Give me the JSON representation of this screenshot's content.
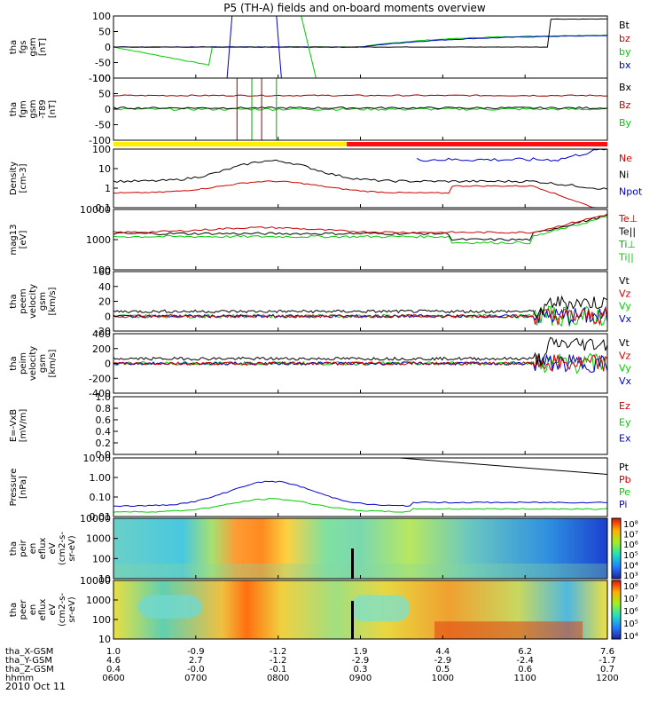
{
  "chart_data": {
    "type": "line",
    "title": "P5 (TH-A) fields and on-board moments overview",
    "date_label": "2010 Oct 11",
    "x_time_ticks": [
      "0600",
      "0700",
      "0800",
      "0900",
      "1000",
      "1100",
      "1200"
    ],
    "orbit_rows": [
      {
        "label": "tha_X-GSM",
        "values": [
          "1.0",
          "-0.9",
          "-1.2",
          "1.9",
          "4.4",
          "6.2",
          "7.6"
        ]
      },
      {
        "label": "tha_Y-GSM",
        "values": [
          "4.6",
          "2.7",
          "-1.2",
          "-2.9",
          "-2.9",
          "-2.4",
          "-1.7"
        ]
      },
      {
        "label": "tha_Z-GSM",
        "values": [
          "0.4",
          "-0.0",
          "-0.1",
          "0.3",
          "0.5",
          "0.6",
          "0.7"
        ]
      },
      {
        "label": "hhmm",
        "values": [
          "0600",
          "0700",
          "0800",
          "0900",
          "1000",
          "1100",
          "1200"
        ]
      }
    ],
    "panels": [
      {
        "id": "fgs",
        "ylabel": [
          "tha",
          "fgs",
          "gsm",
          "[nT]"
        ],
        "y_ticks": [
          "100",
          "50",
          "0",
          "-50",
          "-100"
        ],
        "legend": [
          {
            "name": "Bt",
            "color": "#000000"
          },
          {
            "name": "bz",
            "color": "#cc0000"
          },
          {
            "name": "by",
            "color": "#00cc00"
          },
          {
            "name": "bx",
            "color": "#0000cc"
          }
        ]
      },
      {
        "id": "fgm",
        "ylabel": [
          "tha",
          "fgm",
          "gsm",
          "-T89",
          "[nT]"
        ],
        "y_ticks": [
          "100",
          "50",
          "0",
          "-50",
          "-100"
        ],
        "legend": [
          {
            "name": "Bx",
            "color": "#000000"
          },
          {
            "name": "Bz",
            "color": "#cc0000"
          },
          {
            "name": "By",
            "color": "#00cc00"
          }
        ]
      },
      {
        "id": "density",
        "ylabel": [
          "Density",
          "[cm-3]"
        ],
        "y_ticks": [
          "100",
          "10",
          "1",
          "0.1"
        ],
        "legend": [
          {
            "name": "Ne",
            "color": "#cc0000"
          },
          {
            "name": "Ni",
            "color": "#000000"
          },
          {
            "name": "Npot",
            "color": "#0000cc"
          }
        ]
      },
      {
        "id": "temp",
        "ylabel": [
          "mag13",
          "[eV]"
        ],
        "y_ticks": [
          "10000",
          "1000",
          "100"
        ],
        "legend": [
          {
            "name": "Te⊥",
            "color": "#cc0000"
          },
          {
            "name": "Te||",
            "color": "#000000"
          },
          {
            "name": "Ti⊥",
            "color": "#00aa00"
          },
          {
            "name": "Ti||",
            "color": "#00cc00"
          }
        ]
      },
      {
        "id": "peem",
        "ylabel": [
          "tha",
          "peem",
          "velocity",
          "gsm",
          "[km/s]"
        ],
        "y_ticks": [
          "60",
          "40",
          "20",
          "0",
          "-20"
        ],
        "legend": [
          {
            "name": "Vt",
            "color": "#000000"
          },
          {
            "name": "Vz",
            "color": "#cc0000"
          },
          {
            "name": "Vy",
            "color": "#00cc00"
          },
          {
            "name": "Vx",
            "color": "#0000cc"
          }
        ]
      },
      {
        "id": "peim",
        "ylabel": [
          "tha",
          "peim",
          "velocity",
          "gsm",
          "[km/s]"
        ],
        "y_ticks": [
          "400",
          "200",
          "0",
          "-200",
          "-400"
        ],
        "legend": [
          {
            "name": "Vt",
            "color": "#000000"
          },
          {
            "name": "Vz",
            "color": "#cc0000"
          },
          {
            "name": "Vy",
            "color": "#00cc00"
          },
          {
            "name": "Vx",
            "color": "#0000cc"
          }
        ]
      },
      {
        "id": "efield",
        "ylabel": [
          "E=-VxB",
          "[mV/m]"
        ],
        "y_ticks": [
          "1.0",
          "0.8",
          "0.6",
          "0.4",
          "0.2",
          "0.0"
        ],
        "legend": [
          {
            "name": "Ez",
            "color": "#cc0000"
          },
          {
            "name": "Ey",
            "color": "#00cc00"
          },
          {
            "name": "Ex",
            "color": "#0000cc"
          }
        ]
      },
      {
        "id": "pressure",
        "ylabel": [
          "Pressure",
          "[nPa]"
        ],
        "y_ticks": [
          "10.00",
          "1.00",
          "0.10",
          "0.01"
        ],
        "legend": [
          {
            "name": "Pt",
            "color": "#000000"
          },
          {
            "name": "Pb",
            "color": "#cc0000"
          },
          {
            "name": "Pe",
            "color": "#00cc00"
          },
          {
            "name": "Pi",
            "color": "#0000cc"
          }
        ]
      },
      {
        "id": "peir",
        "ylabel": [
          "tha",
          "peir",
          "en",
          "eflux",
          "eV",
          "(cm2-s-",
          "sr-eV)"
        ],
        "y_ticks": [
          "10000",
          "1000",
          "100",
          "10"
        ],
        "colorbar": [
          "10⁸",
          "10⁷",
          "10⁶",
          "10⁵",
          "10⁴",
          "10³"
        ]
      },
      {
        "id": "peer",
        "ylabel": [
          "tha",
          "peer",
          "en",
          "eflux",
          "eV",
          "(cm2-s-",
          "sr-eV)"
        ],
        "y_ticks": [
          "10000",
          "1000",
          "100",
          "10"
        ],
        "colorbar": [
          "10⁸",
          "10⁷",
          "10⁶",
          "10⁵",
          "10⁴"
        ]
      }
    ]
  }
}
